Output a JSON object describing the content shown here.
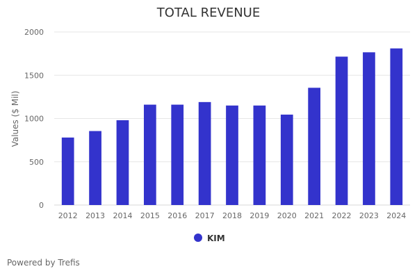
{
  "chart_data": {
    "type": "bar",
    "title": "TOTAL REVENUE",
    "xlabel": "",
    "ylabel": "Values ($ Mil)",
    "ylim": [
      0,
      2000
    ],
    "yticks": [
      0,
      500,
      1000,
      1500,
      2000
    ],
    "grid": true,
    "legend_position": "bottom-center",
    "categories": [
      "2012",
      "2013",
      "2014",
      "2015",
      "2016",
      "2017",
      "2018",
      "2019",
      "2020",
      "2021",
      "2022",
      "2023",
      "2024"
    ],
    "series": [
      {
        "name": "KIM",
        "color": "#3333cc",
        "values": [
          780,
          855,
          980,
          1160,
          1160,
          1190,
          1150,
          1150,
          1045,
          1355,
          1715,
          1765,
          1810
        ]
      }
    ]
  },
  "footer": {
    "credits": "Powered by Trefis"
  },
  "colors": {
    "bar": "#3333cc",
    "grid": "#e6e6e6",
    "text": "#666666",
    "title": "#333333"
  }
}
